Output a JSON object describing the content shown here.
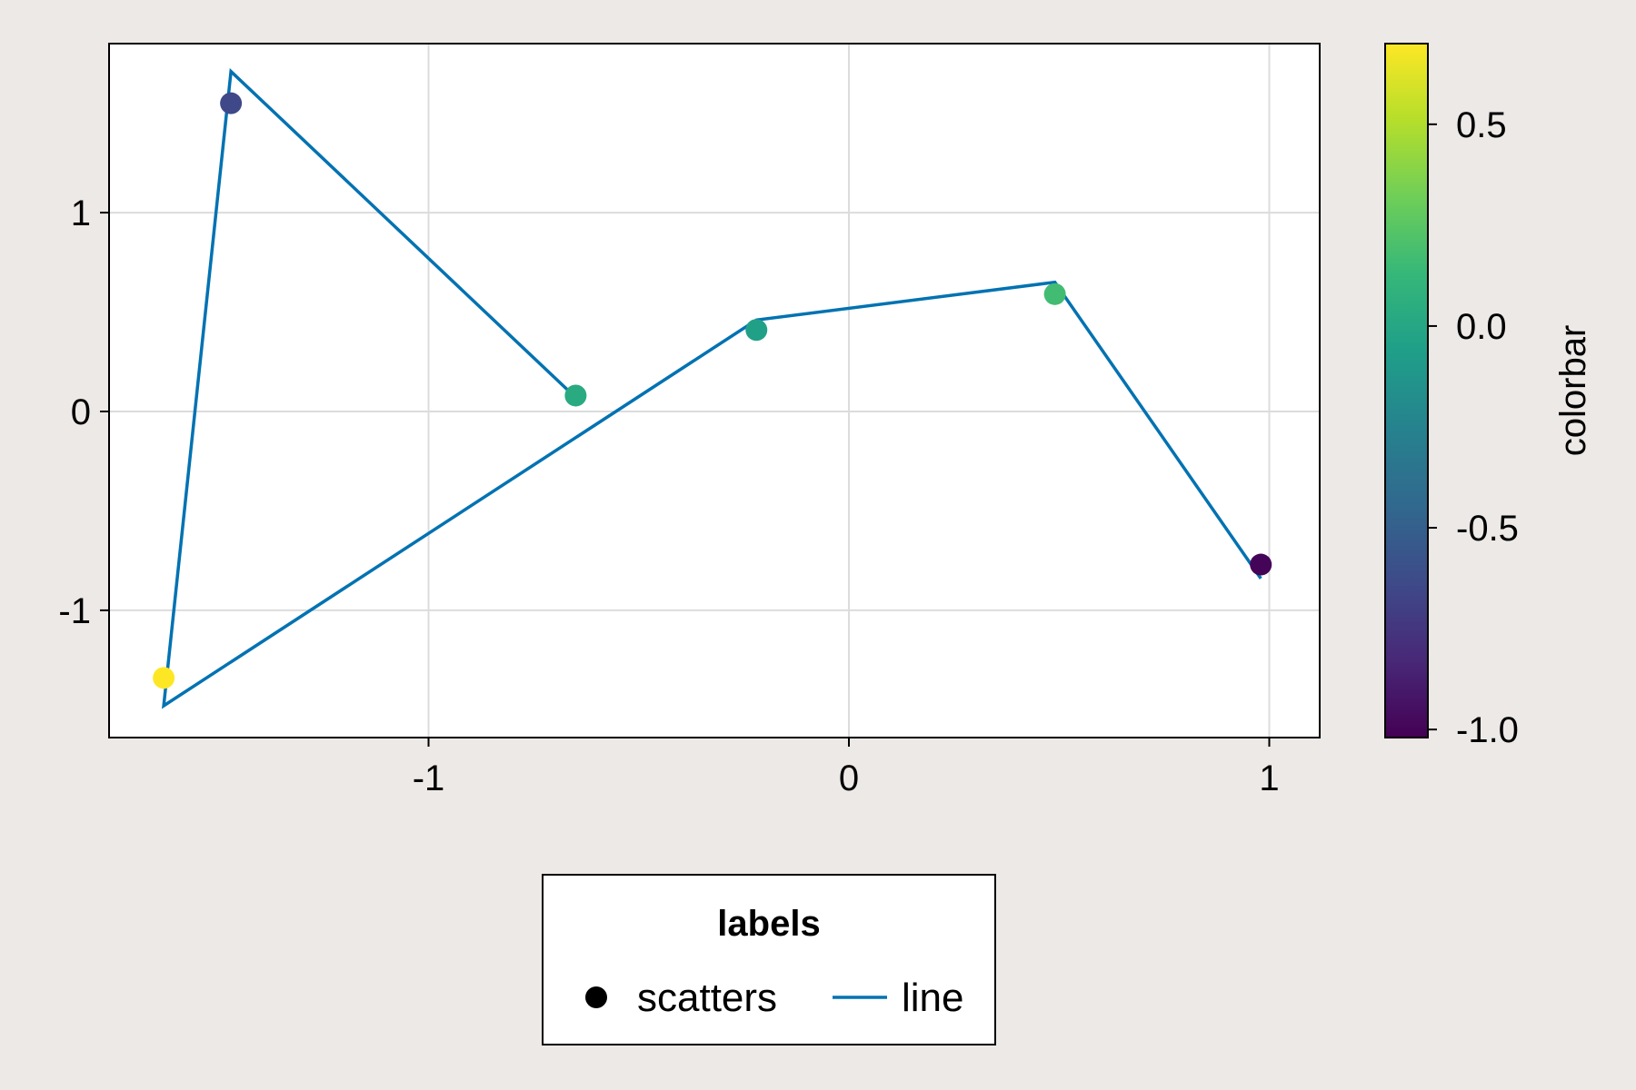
{
  "chart_data": {
    "type": "scatter",
    "title": "",
    "xlabel": "",
    "ylabel": "",
    "xlim": [
      -1.76,
      1.12
    ],
    "ylim": [
      -1.64,
      1.85
    ],
    "xticks": [
      -1,
      0,
      1
    ],
    "yticks": [
      -1,
      0,
      1
    ],
    "xtick_labels": [
      "-1",
      "0",
      "1"
    ],
    "ytick_labels": [
      "-1",
      "0",
      "1"
    ],
    "grid": true,
    "series": [
      {
        "name": "scatters",
        "kind": "scatter",
        "x": [
          -1.47,
          -0.65,
          -1.63,
          -0.22,
          0.49,
          0.98
        ],
        "y": [
          1.55,
          0.08,
          -1.34,
          0.41,
          0.59,
          -0.77
        ],
        "c": [
          -0.65,
          0.03,
          0.7,
          -0.05,
          0.17,
          -1.0
        ]
      },
      {
        "name": "line",
        "kind": "line",
        "color": "#0072b2",
        "x": [
          -0.66,
          -1.47,
          -1.63,
          -0.22,
          0.49,
          0.98
        ],
        "y": [
          0.09,
          1.71,
          -1.48,
          0.46,
          0.65,
          -0.84
        ]
      }
    ],
    "colorbar": {
      "label": "colorbar",
      "range": [
        -1.02,
        0.7
      ],
      "ticks": [
        -1.0,
        -0.5,
        0.0,
        0.5
      ],
      "tick_labels": [
        "-1.0",
        "-0.5",
        "0.0",
        "0.5"
      ],
      "colormap": "viridis",
      "colormap_stops": [
        "#440154",
        "#482878",
        "#3e4a89",
        "#31688e",
        "#26828e",
        "#1f9e89",
        "#35b779",
        "#6ece58",
        "#b5de2b",
        "#fde725"
      ]
    },
    "legend": {
      "title": "labels",
      "position": "bottom-center",
      "items": [
        {
          "label": "scatters",
          "marker": "circle",
          "color": "#000000"
        },
        {
          "label": "line",
          "marker": "line",
          "color": "#0072b2"
        }
      ]
    }
  }
}
